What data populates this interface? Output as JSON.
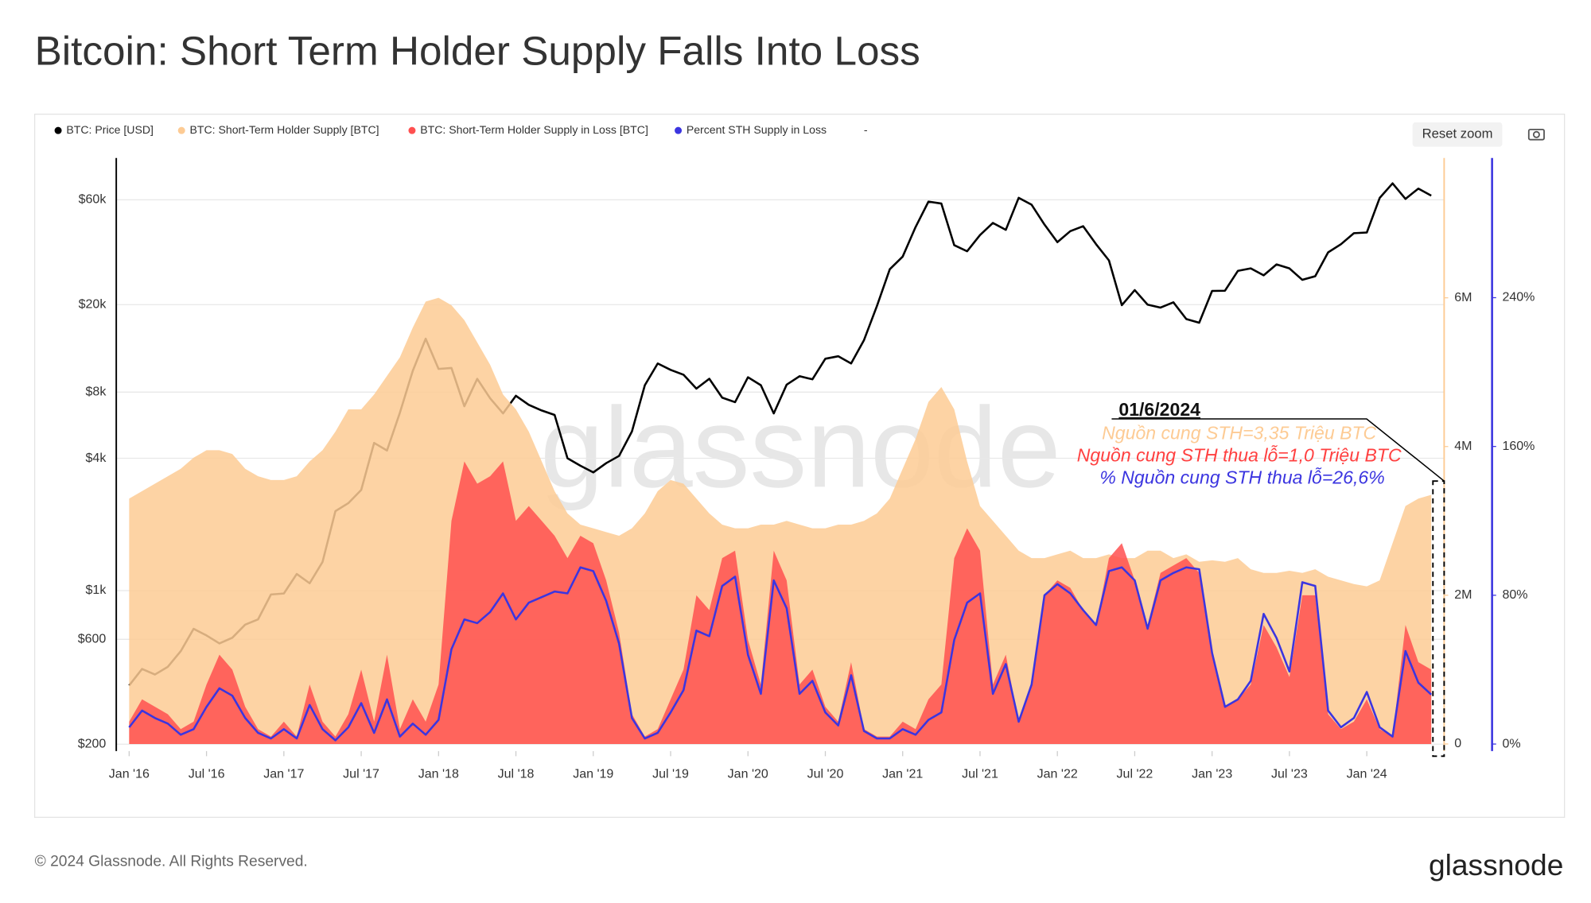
{
  "title": "Bitcoin: Short Term Holder Supply Falls Into Loss",
  "reset_zoom": "Reset zoom",
  "watermark": "glassnode",
  "footer": "© 2024 Glassnode. All Rights Reserved.",
  "logo": "glassnode",
  "chart_data": {
    "type": "combo",
    "legend_extra": "-",
    "annotations": [
      "01/6/2024",
      "Nguồn cung STH=3,35 Triệu BTC",
      "Nguồn cung STH thua lỗ=1,0 Triệu BTC",
      "% Nguồn cung STH thua lỗ=26,6%"
    ],
    "x": [
      "2016-01",
      "2016-02",
      "2016-03",
      "2016-04",
      "2016-05",
      "2016-06",
      "2016-07",
      "2016-08",
      "2016-09",
      "2016-10",
      "2016-11",
      "2016-12",
      "2017-01",
      "2017-02",
      "2017-03",
      "2017-04",
      "2017-05",
      "2017-06",
      "2017-07",
      "2017-08",
      "2017-09",
      "2017-10",
      "2017-11",
      "2017-12",
      "2018-01",
      "2018-02",
      "2018-03",
      "2018-04",
      "2018-05",
      "2018-06",
      "2018-07",
      "2018-08",
      "2018-09",
      "2018-10",
      "2018-11",
      "2018-12",
      "2019-01",
      "2019-02",
      "2019-03",
      "2019-04",
      "2019-05",
      "2019-06",
      "2019-07",
      "2019-08",
      "2019-09",
      "2019-10",
      "2019-11",
      "2019-12",
      "2020-01",
      "2020-02",
      "2020-03",
      "2020-04",
      "2020-05",
      "2020-06",
      "2020-07",
      "2020-08",
      "2020-09",
      "2020-10",
      "2020-11",
      "2020-12",
      "2021-01",
      "2021-02",
      "2021-03",
      "2021-04",
      "2021-05",
      "2021-06",
      "2021-07",
      "2021-08",
      "2021-09",
      "2021-10",
      "2021-11",
      "2021-12",
      "2022-01",
      "2022-02",
      "2022-03",
      "2022-04",
      "2022-05",
      "2022-06",
      "2022-07",
      "2022-08",
      "2022-09",
      "2022-10",
      "2022-11",
      "2022-12",
      "2023-01",
      "2023-02",
      "2023-03",
      "2023-04",
      "2023-05",
      "2023-06",
      "2023-07",
      "2023-08",
      "2023-09",
      "2023-10",
      "2023-11",
      "2023-12",
      "2024-01",
      "2024-02",
      "2024-03",
      "2024-04",
      "2024-05",
      "2024-06"
    ],
    "xlim": [
      "2015-12",
      "2024-07"
    ],
    "xticks": [
      {
        "value": "2016-01",
        "label": "Jan '16"
      },
      {
        "value": "2016-07",
        "label": "Jul '16"
      },
      {
        "value": "2017-01",
        "label": "Jan '17"
      },
      {
        "value": "2017-07",
        "label": "Jul '17"
      },
      {
        "value": "2018-01",
        "label": "Jan '18"
      },
      {
        "value": "2018-07",
        "label": "Jul '18"
      },
      {
        "value": "2019-01",
        "label": "Jan '19"
      },
      {
        "value": "2019-07",
        "label": "Jul '19"
      },
      {
        "value": "2020-01",
        "label": "Jan '20"
      },
      {
        "value": "2020-07",
        "label": "Jul '20"
      },
      {
        "value": "2021-01",
        "label": "Jan '21"
      },
      {
        "value": "2021-07",
        "label": "Jul '21"
      },
      {
        "value": "2022-01",
        "label": "Jan '22"
      },
      {
        "value": "2022-07",
        "label": "Jul '22"
      },
      {
        "value": "2023-01",
        "label": "Jan '23"
      },
      {
        "value": "2023-07",
        "label": "Jul '23"
      },
      {
        "value": "2024-01",
        "label": "Jan '24"
      }
    ],
    "ylog": true,
    "ylim": [
      186,
      93000
    ],
    "yticks": [
      {
        "value": 200,
        "label": "$200"
      },
      {
        "value": 600,
        "label": "$600"
      },
      {
        "value": 1000,
        "label": "$1k"
      },
      {
        "value": 4000,
        "label": "$4k"
      },
      {
        "value": 8000,
        "label": "$8k"
      },
      {
        "value": 20000,
        "label": "$20k"
      },
      {
        "value": 60000,
        "label": "$60k"
      }
    ],
    "y2lim": [
      -96000,
      7880000
    ],
    "y2ticks": [
      0,
      {
        "value": 2000000,
        "label": "2M"
      },
      {
        "value": 4000000,
        "label": "4M"
      },
      {
        "value": 6000000,
        "label": "6M"
      }
    ],
    "y3lim": [
      -3.8,
      315.1
    ],
    "y3ticks": [
      {
        "value": 0,
        "label": "0%"
      },
      {
        "value": 80,
        "label": "80%"
      },
      {
        "value": 160,
        "label": "160%"
      },
      {
        "value": 240,
        "label": "240%"
      }
    ],
    "grid": true,
    "series": [
      {
        "name": "BTC: Price [USD]",
        "type": "line",
        "color": "#000000",
        "axis": "y",
        "values": [
          370,
          440,
          415,
          450,
          530,
          670,
          625,
          575,
          610,
          700,
          740,
          960,
          970,
          1190,
          1080,
          1350,
          2300,
          2500,
          2870,
          4700,
          4340,
          6450,
          10000,
          14000,
          10200,
          10300,
          6900,
          9200,
          7500,
          6400,
          7700,
          7000,
          6600,
          6300,
          4000,
          3700,
          3450,
          3800,
          4100,
          5300,
          8600,
          10800,
          10100,
          9600,
          8300,
          9200,
          7550,
          7200,
          9350,
          8600,
          6400,
          8650,
          9450,
          9150,
          11350,
          11650,
          10800,
          13800,
          19700,
          29000,
          33100,
          45100,
          58900,
          57700,
          37300,
          35000,
          41500,
          47100,
          43800,
          61300,
          57000,
          46300,
          38500,
          43200,
          45500,
          37700,
          31800,
          19900,
          23300,
          20000,
          19400,
          20500,
          17200,
          16550,
          23100,
          23150,
          28500,
          29250,
          27200,
          30500,
          29250,
          25950,
          26950,
          34600,
          37700,
          42300,
          42600,
          61200,
          71300,
          60600,
          67500,
          62700
        ]
      },
      {
        "name": "BTC: Short-Term Holder Supply [BTC]",
        "type": "area",
        "color": "#fdcb94",
        "axis": "y2",
        "values": [
          3300000,
          3400000,
          3500000,
          3600000,
          3700000,
          3850000,
          3950000,
          3950000,
          3900000,
          3700000,
          3600000,
          3550000,
          3550000,
          3600000,
          3800000,
          3950000,
          4200000,
          4500000,
          4500000,
          4700000,
          4950000,
          5200000,
          5600000,
          5950000,
          6000000,
          5900000,
          5700000,
          5400000,
          5100000,
          4700000,
          4500000,
          4200000,
          3800000,
          3400000,
          3100000,
          2950000,
          2900000,
          2850000,
          2800000,
          2900000,
          3100000,
          3400000,
          3550000,
          3500000,
          3300000,
          3100000,
          2950000,
          2900000,
          2900000,
          2950000,
          2950000,
          3000000,
          2950000,
          2900000,
          2900000,
          2950000,
          2950000,
          3000000,
          3100000,
          3300000,
          3700000,
          4100000,
          4600000,
          4800000,
          4500000,
          3800000,
          3200000,
          3000000,
          2800000,
          2600000,
          2500000,
          2500000,
          2550000,
          2600000,
          2500000,
          2500000,
          2550000,
          2500000,
          2500000,
          2600000,
          2600000,
          2500000,
          2550000,
          2450000,
          2470000,
          2450000,
          2500000,
          2350000,
          2300000,
          2300000,
          2330000,
          2300000,
          2350000,
          2250000,
          2200000,
          2150000,
          2120000,
          2200000,
          2700000,
          3200000,
          3300000,
          3350000
        ]
      },
      {
        "name": "BTC: Short-Term Holder Supply in Loss [BTC]",
        "type": "area",
        "color": "#ff5050",
        "axis": "y2",
        "values": [
          300000,
          600000,
          500000,
          400000,
          200000,
          300000,
          800000,
          1200000,
          1000000,
          500000,
          200000,
          100000,
          300000,
          100000,
          800000,
          300000,
          100000,
          400000,
          1000000,
          300000,
          1200000,
          200000,
          600000,
          300000,
          800000,
          3000000,
          3800000,
          3500000,
          3600000,
          3800000,
          3000000,
          3200000,
          3000000,
          2800000,
          2500000,
          2800000,
          2700000,
          2200000,
          1500000,
          400000,
          100000,
          200000,
          600000,
          1000000,
          2000000,
          1800000,
          2500000,
          2600000,
          1400000,
          800000,
          2600000,
          2200000,
          800000,
          1000000,
          500000,
          300000,
          1100000,
          200000,
          100000,
          100000,
          300000,
          200000,
          600000,
          800000,
          2500000,
          2900000,
          2600000,
          800000,
          1200000,
          300000,
          800000,
          2000000,
          2200000,
          2100000,
          1800000,
          1600000,
          2500000,
          2700000,
          2200000,
          1600000,
          2300000,
          2400000,
          2500000,
          2300000,
          1200000,
          500000,
          600000,
          800000,
          1600000,
          1300000,
          900000,
          2000000,
          2000000,
          400000,
          200000,
          300000,
          600000,
          200000,
          100000,
          1600000,
          1100000,
          1000000
        ]
      },
      {
        "name": "Percent STH Supply in Loss",
        "type": "line",
        "color": "#3b35e0",
        "axis": "y3",
        "values": [
          9,
          18,
          14,
          11,
          5,
          8,
          20,
          30,
          26,
          14,
          6,
          3,
          8,
          3,
          21,
          8,
          2,
          9,
          22,
          6,
          24,
          4,
          11,
          5,
          13,
          51,
          67,
          65,
          71,
          81,
          67,
          76,
          79,
          82,
          81,
          95,
          93,
          77,
          54,
          14,
          3,
          6,
          17,
          29,
          61,
          58,
          85,
          90,
          48,
          27,
          88,
          73,
          27,
          34,
          17,
          10,
          37,
          7,
          3,
          3,
          8,
          5,
          13,
          17,
          56,
          76,
          81,
          27,
          43,
          12,
          32,
          80,
          86,
          81,
          72,
          64,
          93,
          95,
          88,
          62,
          88,
          92,
          95,
          94,
          49,
          20,
          24,
          34,
          70,
          57,
          39,
          87,
          85,
          18,
          9,
          14,
          28,
          9,
          4,
          50,
          33,
          26.6
        ]
      }
    ]
  }
}
